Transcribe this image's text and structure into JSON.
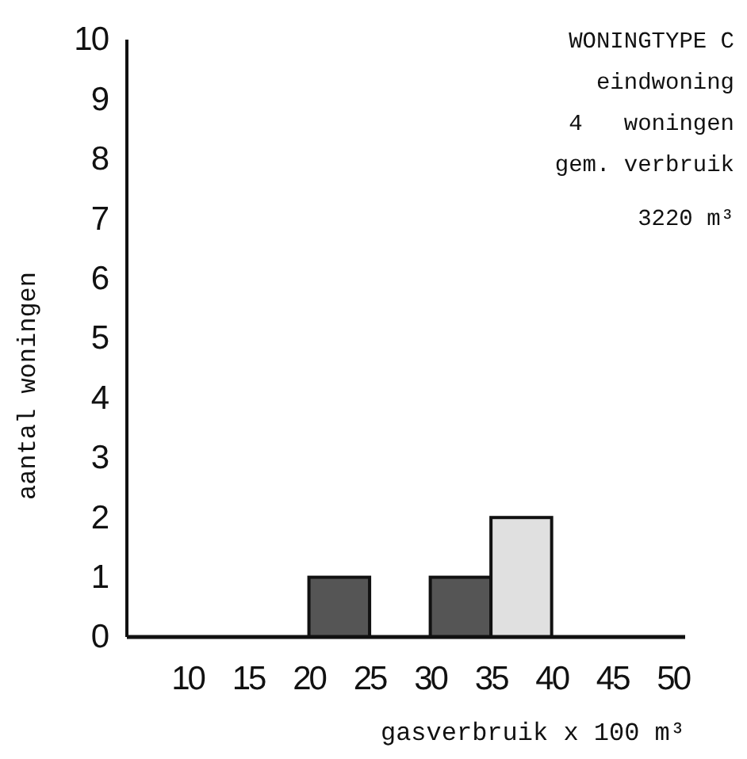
{
  "chart_data": {
    "type": "histogram",
    "xlabel": "gasverbruik x 100 m³",
    "ylabel": "aantal woningen",
    "annotations": [
      "WONINGTYPE C",
      "eindwoning",
      "4   woningen",
      "gem. verbruik",
      "3220 m³"
    ],
    "bins": [
      5,
      10,
      15,
      20,
      25,
      30,
      35,
      40,
      45,
      50
    ],
    "values": [
      0,
      0,
      0,
      1,
      0,
      1,
      2,
      0,
      0
    ],
    "colors": [
      "#555555",
      "#555555",
      "#555555",
      "#555555",
      "#555555",
      "#555555",
      "#e0e0e0",
      "#555555",
      "#555555"
    ],
    "xlim": [
      5,
      51
    ],
    "xticks": [
      10,
      15,
      20,
      25,
      30,
      35,
      40,
      45,
      50
    ],
    "ylim": [
      0,
      10
    ],
    "yticks": [
      0,
      1,
      2,
      3,
      4,
      5,
      6,
      7,
      8,
      9,
      10
    ],
    "grid": false
  }
}
